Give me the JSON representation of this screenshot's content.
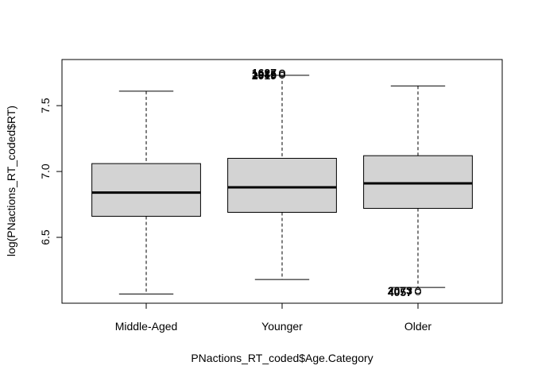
{
  "chart_data": {
    "type": "box",
    "x_label": "PNactions_RT_coded$Age.Category",
    "y_label": "log(PNactions_RT_coded$RT)",
    "categories": [
      "Middle-Aged",
      "Younger",
      "Older"
    ],
    "boxes": [
      {
        "low": 6.07,
        "q1": 6.66,
        "median": 6.84,
        "q3": 7.06,
        "high": 7.61,
        "outliers": []
      },
      {
        "low": 6.18,
        "q1": 6.69,
        "median": 6.88,
        "q3": 7.1,
        "high": 7.73,
        "outliers": [
          {
            "value": 7.73,
            "label": "2019"
          },
          {
            "value": 7.74,
            "label": "1935"
          },
          {
            "value": 7.75,
            "label": "1627"
          }
        ]
      },
      {
        "low": 6.12,
        "q1": 6.72,
        "median": 6.91,
        "q3": 7.12,
        "high": 7.65,
        "outliers": [
          {
            "value": 6.095,
            "label": "2073"
          },
          {
            "value": 6.085,
            "label": "4057"
          }
        ]
      }
    ],
    "color": "#d3d3d3",
    "ylim": [
      6.0,
      7.85
    ],
    "yticks": [
      6.5,
      {
        "value": 7,
        "label": "7.0"
      },
      7.5
    ]
  }
}
